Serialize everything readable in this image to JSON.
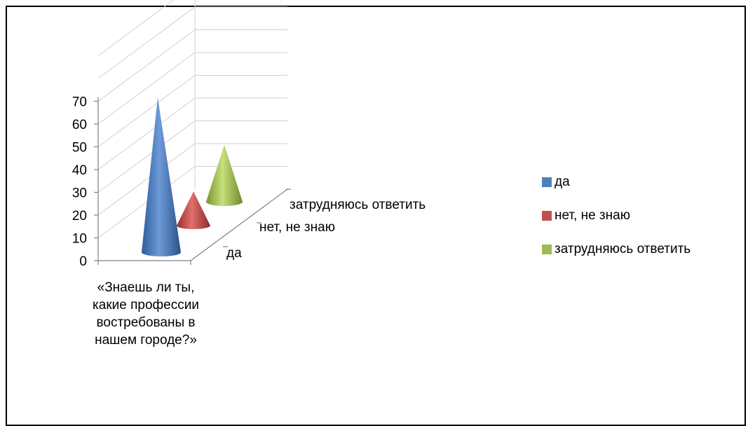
{
  "chart_data": {
    "type": "3d-cone",
    "y_axis": {
      "ylim": [
        0,
        70
      ],
      "ticks": [
        "0",
        "10",
        "20",
        "30",
        "40",
        "50",
        "60",
        "70"
      ]
    },
    "x_category": "«Знаешь ли ты, какие профессии востребованы в нашем городе?»",
    "depth_categories": [
      "да",
      "нет, не знаю",
      "затрудняюсь ответить"
    ],
    "series": [
      {
        "name": "да",
        "values": [
          68
        ],
        "color": "#4F81BD"
      },
      {
        "name": "нет, не знаю",
        "values": [
          15
        ],
        "color": "#C0504D"
      },
      {
        "name": "затрудняюсь ответить",
        "values": [
          25
        ],
        "color": "#9BBB59"
      }
    ],
    "legend": {
      "position": "right",
      "items": [
        "да",
        "нет, не знаю",
        "затрудняюсь ответить"
      ]
    },
    "grid": true
  }
}
